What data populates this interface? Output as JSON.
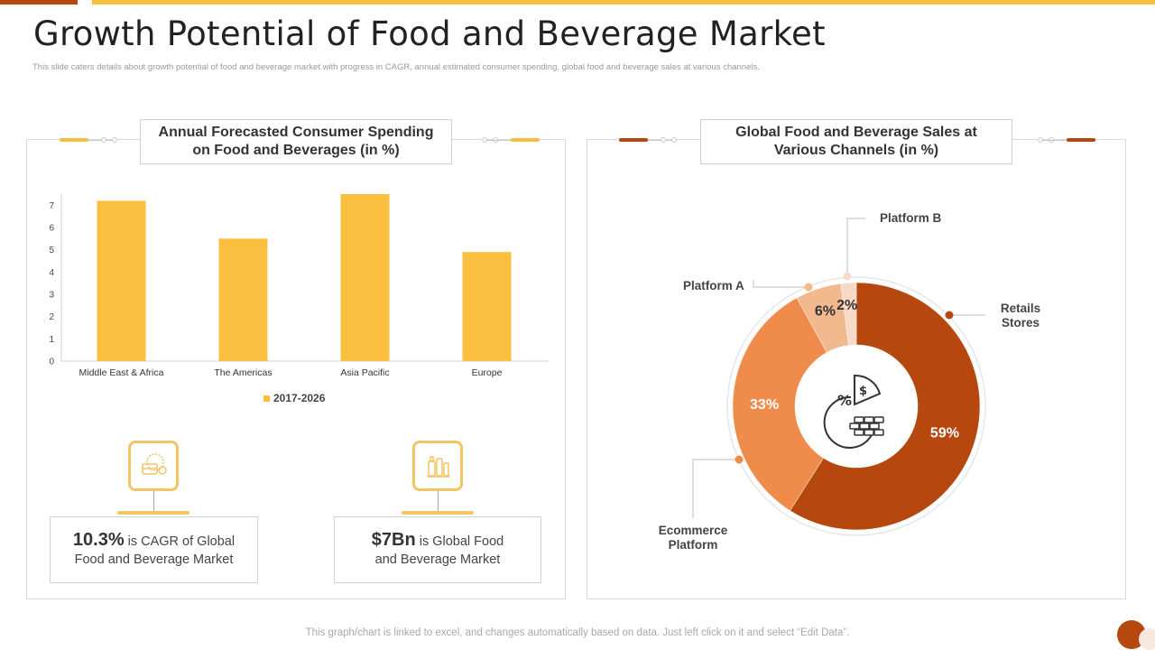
{
  "header": {
    "title": "Growth Potential of Food and Beverage Market",
    "subtitle": "This slide caters details about growth potential of food and beverage market  with progress in CAGR,  annual estimated consumer spending,  global  food and beverage sales at various channels."
  },
  "colors": {
    "accent_dark": "#b5470f",
    "accent_yellow": "#f6be3e",
    "bar": "#fbbf3f",
    "slice_orange": "#ef8c4b",
    "slice_light": "#f2b98f",
    "slice_pale": "#f7d9c6"
  },
  "left_panel": {
    "heading_line1": "Annual Forecasted Consumer Spending",
    "heading_line2": "on Food and Beverages (in %)",
    "legend": "2017-2026",
    "stats": [
      {
        "value": "10.3%",
        "text_inline": " is CAGR of Global",
        "text_line2": "Food and Beverage Market",
        "icon": "food-basket-icon"
      },
      {
        "value": "$7Bn",
        "text_inline": " is Global Food",
        "text_line2": "and Beverage Market",
        "icon": "beverage-bottles-icon"
      }
    ]
  },
  "right_panel": {
    "heading_line1": "Global Food and Beverage Sales at",
    "heading_line2": "Various Channels (in %)",
    "center_icon": "finance-chart-icon",
    "callouts": {
      "platform_b": "Platform B",
      "platform_a": "Platform A",
      "retail_line1": "Retails",
      "retail_line2": "Stores",
      "ecom_line1": "Ecommerce",
      "ecom_line2": "Platform"
    }
  },
  "chart_data": [
    {
      "type": "bar",
      "title": "Annual Forecasted Consumer Spending on Food and Beverages (in %)",
      "categories": [
        "Middle East & Africa",
        "The Americas",
        "Asia Pacific",
        "Europe"
      ],
      "series": [
        {
          "name": "2017-2026",
          "values": [
            7.2,
            5.5,
            7.5,
            4.9
          ]
        }
      ],
      "ylim": [
        0,
        7.5
      ],
      "yticks": [
        0,
        1,
        2,
        3,
        4,
        5,
        6,
        7
      ],
      "legend_position": "bottom",
      "grid": false
    },
    {
      "type": "pie",
      "title": "Global Food and Beverage Sales at Various Channels (in %)",
      "slices": [
        {
          "label": "Retails Stores",
          "value": 59,
          "display": "59%"
        },
        {
          "label": "Ecommerce Platform",
          "value": 33,
          "display": "33%"
        },
        {
          "label": "Platform A",
          "value": 6,
          "display": "6%"
        },
        {
          "label": "Platform B",
          "value": 2,
          "display": "2%"
        }
      ]
    }
  ],
  "footer": {
    "note": "This graph/chart is linked to excel,  and changes automatically based on data. Just left click on it and select “Edit Data”."
  }
}
